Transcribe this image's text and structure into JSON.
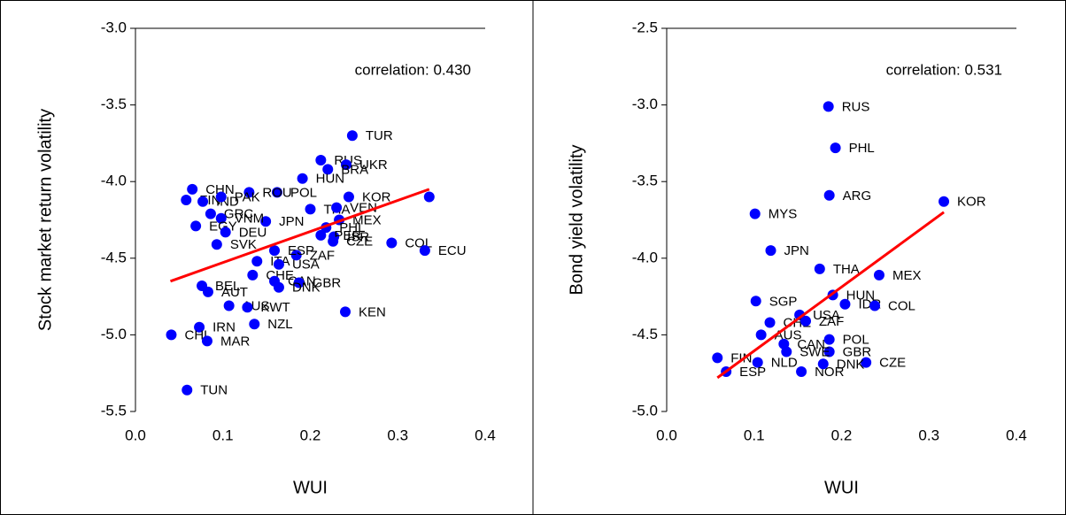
{
  "chart_data": [
    {
      "type": "scatter",
      "annotation": "correlation:  0.430",
      "x_label": "WUI",
      "y_label": "Stock market  return volatility",
      "xlim": [
        0,
        0.4
      ],
      "ylim": [
        -5.5,
        -3
      ],
      "xticks": [
        {
          "value": 0,
          "label": "0.0"
        },
        0.1,
        0.2,
        0.3,
        0.4
      ],
      "yticks": [
        {
          "value": -5.5,
          "label": "-5.5"
        },
        {
          "value": -5,
          "label": "-5.0"
        },
        -4.5,
        {
          "value": -4,
          "label": "-4.0"
        },
        -3.5,
        {
          "value": -3,
          "label": "-3.0"
        }
      ],
      "series": [
        {
          "color": "#0000ff",
          "labels": [
            "TUR",
            "RUS",
            "UKR",
            "BRA",
            "HUN",
            "POL",
            "ROU",
            "KOR",
            "CHN",
            "FIN",
            "IND",
            "PAK",
            null,
            "COL",
            "ECU",
            "THA",
            "VEN",
            "MEX",
            "PHL",
            "JPN",
            "GRC",
            "VNM",
            "EGY",
            "DEU",
            "ISR",
            "PER",
            "CZE",
            "SVK",
            "ZAF",
            "ESP",
            "ITA",
            "USA",
            "CHE",
            "BEL",
            "AUT",
            "CAN",
            "GBR",
            "DNK",
            "AUS",
            "KWT",
            "NZL",
            "KEN",
            "IRN",
            "CHL",
            "MAR",
            "TUN"
          ],
          "x": [
            0.248,
            0.212,
            0.241,
            0.22,
            0.191,
            0.162,
            0.13,
            0.244,
            0.065,
            0.058,
            0.077,
            0.098,
            0.336,
            0.293,
            0.331,
            0.2,
            0.23,
            0.233,
            0.218,
            0.149,
            0.086,
            0.098,
            0.069,
            0.103,
            0.227,
            0.212,
            0.226,
            0.093,
            0.184,
            0.159,
            0.139,
            0.164,
            0.134,
            0.076,
            0.083,
            0.159,
            0.187,
            0.164,
            0.107,
            0.128,
            0.136,
            0.24,
            0.073,
            0.041,
            0.082,
            0.059
          ],
          "values": [
            -3.7,
            -3.86,
            -3.89,
            -3.92,
            -3.98,
            -4.07,
            -4.07,
            -4.1,
            -4.05,
            -4.12,
            -4.13,
            -4.1,
            -4.1,
            -4.4,
            -4.45,
            -4.18,
            -4.17,
            -4.25,
            -4.3,
            -4.26,
            -4.21,
            -4.24,
            -4.29,
            -4.33,
            -4.36,
            -4.35,
            -4.39,
            -4.41,
            -4.48,
            -4.45,
            -4.52,
            -4.54,
            -4.61,
            -4.68,
            -4.72,
            -4.65,
            -4.66,
            -4.69,
            -4.81,
            -4.82,
            -4.93,
            -4.85,
            -4.95,
            -5.0,
            -5.04,
            -5.36
          ]
        }
      ],
      "trend": {
        "color": "#ff0000",
        "x": [
          0.04,
          0.336
        ],
        "y": [
          -4.65,
          -4.05
        ]
      }
    },
    {
      "type": "scatter",
      "annotation": "correlation:  0.531",
      "x_label": "WUI",
      "y_label": "Bond yield volatility",
      "xlim": [
        0,
        0.4
      ],
      "ylim": [
        -5,
        -2.5
      ],
      "xticks": [
        {
          "value": 0,
          "label": "0.0"
        },
        0.1,
        0.2,
        0.3,
        0.4
      ],
      "yticks": [
        {
          "value": -5,
          "label": "-5.0"
        },
        -4.5,
        {
          "value": -4,
          "label": "-4.0"
        },
        -3.5,
        {
          "value": -3,
          "label": "-3.0"
        },
        -2.5
      ],
      "series": [
        {
          "color": "#0000ff",
          "labels": [
            "RUS",
            "PHL",
            "ARG",
            "KOR",
            "MYS",
            "JPN",
            "THA",
            "MEX",
            "HUN",
            "IDR",
            "COL",
            "SGP",
            "USA",
            "CHE",
            "ZAF",
            "AUS",
            "POL",
            "GBR",
            "CZE",
            "FIN",
            "SWE",
            "NLD",
            "ESP",
            "NOR",
            "DNK",
            "CAN"
          ],
          "x": [
            0.185,
            0.193,
            0.186,
            0.317,
            0.101,
            0.119,
            0.175,
            0.243,
            0.19,
            0.204,
            0.238,
            0.102,
            0.152,
            0.118,
            0.159,
            0.108,
            0.186,
            0.186,
            0.228,
            0.058,
            0.137,
            0.104,
            0.068,
            0.154,
            0.179,
            0.134
          ],
          "values": [
            -3.01,
            -3.28,
            -3.59,
            -3.63,
            -3.71,
            -3.95,
            -4.07,
            -4.11,
            -4.24,
            -4.3,
            -4.31,
            -4.28,
            -4.37,
            -4.42,
            -4.41,
            -4.5,
            -4.53,
            -4.61,
            -4.68,
            -4.65,
            -4.61,
            -4.68,
            -4.74,
            -4.74,
            -4.69,
            -4.56
          ]
        }
      ],
      "trend": {
        "color": "#ff0000",
        "x": [
          0.058,
          0.317
        ],
        "y": [
          -4.78,
          -3.7
        ]
      }
    }
  ]
}
